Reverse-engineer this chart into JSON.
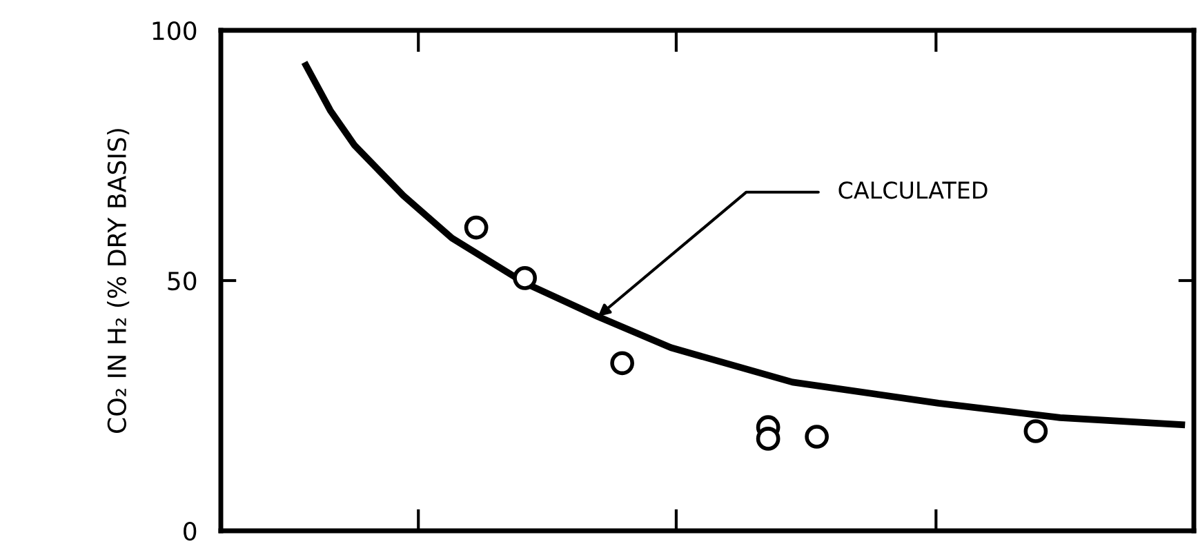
{
  "chart_data": {
    "type": "line",
    "ylabel": "CO₂ IN H₂ (% DRY BASIS)",
    "categories": [
      null,
      null,
      null,
      null,
      null,
      null,
      null,
      null,
      null,
      null,
      null,
      null,
      null,
      null,
      null,
      null,
      null,
      null,
      null,
      null,
      null,
      null,
      null,
      null,
      null,
      null,
      null,
      null,
      null,
      null,
      null,
      null,
      null,
      null,
      null,
      null,
      null,
      null,
      null,
      null
    ],
    "ylim": [
      0,
      100
    ],
    "yticks": [
      0,
      50,
      100
    ],
    "tick_labels": "y",
    "grid": false,
    "legend": false,
    "series": [
      {
        "color": "#000000",
        "marker": "none",
        "line_style": "solid",
        "values": [
          null,
          null,
          null,
          93,
          84,
          77,
          null,
          67,
          null,
          58.5,
          null,
          null,
          49.5,
          null,
          null,
          42.8,
          null,
          null,
          36.6,
          null,
          null,
          null,
          null,
          29.7,
          null,
          null,
          null,
          null,
          null,
          25.5,
          null,
          null,
          null,
          null,
          22.6,
          null,
          null,
          null,
          null,
          21.2
        ]
      },
      {
        "type": "scatter",
        "color": "#000000",
        "marker": "circle",
        "values": [
          null,
          null,
          null,
          null,
          null,
          null,
          null,
          null,
          null,
          null,
          60.6,
          null,
          50.5,
          null,
          null,
          null,
          33.5,
          null,
          null,
          null,
          null,
          null,
          20.7,
          null,
          18.8,
          null,
          null,
          null,
          null,
          null,
          null,
          null,
          null,
          19.9,
          null,
          null,
          null,
          null,
          null,
          null
        ]
      },
      {
        "type": "scatter",
        "color": "#000000",
        "marker": "circle",
        "values": [
          null,
          null,
          null,
          null,
          null,
          null,
          null,
          null,
          null,
          null,
          null,
          null,
          null,
          null,
          null,
          null,
          null,
          null,
          null,
          null,
          null,
          null,
          18.4,
          null,
          null,
          null,
          null,
          null,
          null,
          null,
          null,
          null,
          null,
          null,
          null,
          null,
          null,
          null,
          null,
          null
        ]
      }
    ],
    "annotations": [
      "CALCULATED"
    ]
  }
}
